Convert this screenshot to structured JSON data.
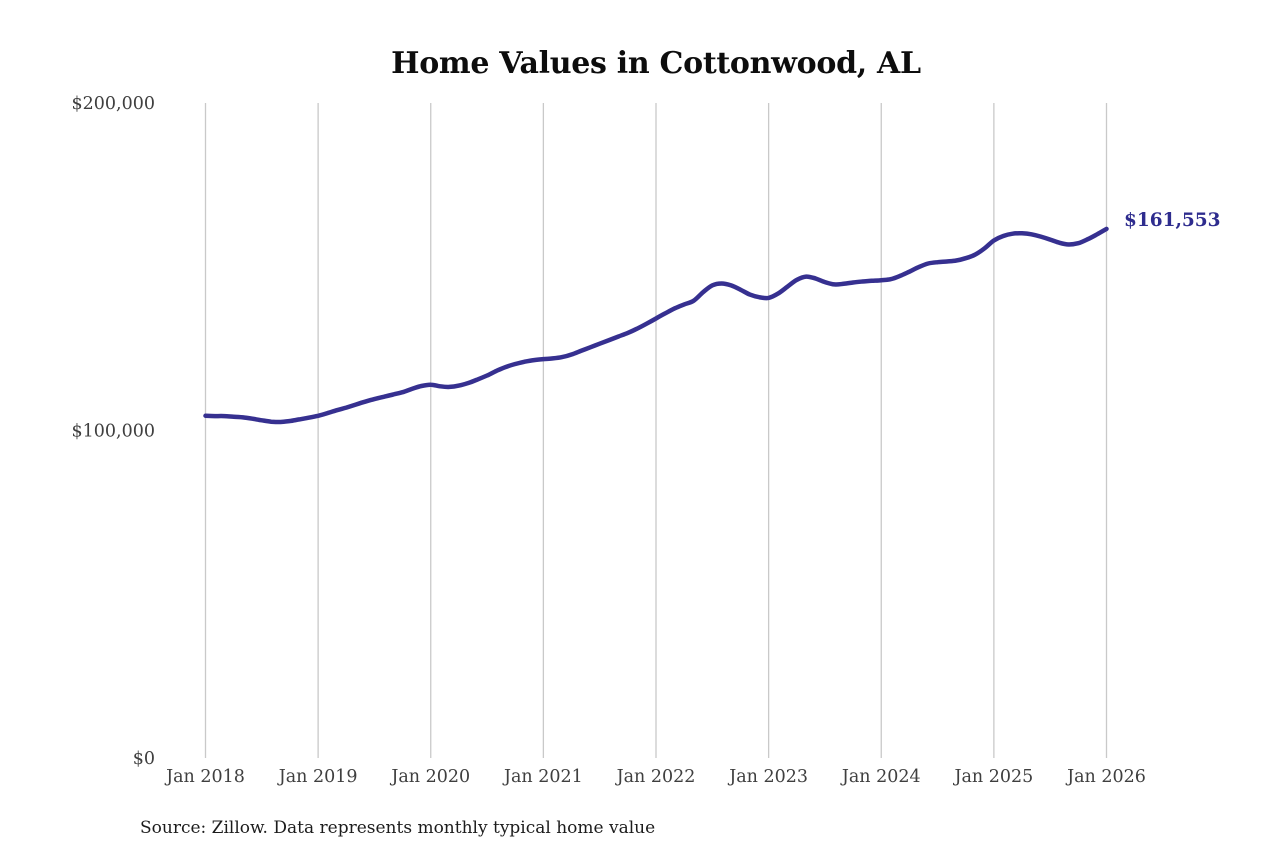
{
  "title": "Home Values in Cottonwood, AL",
  "source_note": "Source: Zillow. Data represents monthly typical home value",
  "end_label": "$161,553",
  "colors": {
    "line": "#363090",
    "end_label": "#2e2c8e",
    "gridline": "#c9c9c9",
    "axis_text": "#3f3f3f",
    "title_text": "#0d0d0d",
    "source_text": "#1c1c1c"
  },
  "chart_data": {
    "type": "line",
    "title": "Home Values in Cottonwood, AL",
    "xlabel": "",
    "ylabel": "",
    "ylim": [
      0,
      200000
    ],
    "y_ticks": [
      0,
      100000,
      200000
    ],
    "y_tick_labels": [
      "$0",
      "$100,000",
      "$200,000"
    ],
    "x_tick_labels": [
      "Jan 2018",
      "Jan 2019",
      "Jan 2020",
      "Jan 2021",
      "Jan 2022",
      "Jan 2023",
      "Jan 2024",
      "Jan 2025",
      "Jan 2026"
    ],
    "grid": "vertical-only",
    "legend": "none",
    "x_start_month": "2018-01",
    "x_end_month": "2026-01",
    "final_value": 161553,
    "series": [
      {
        "name": "Monthly typical home value",
        "monthly_values": [
          104500,
          104400,
          104400,
          104200,
          104000,
          103600,
          103100,
          102700,
          102600,
          102900,
          103400,
          103900,
          104500,
          105300,
          106200,
          107000,
          107900,
          108800,
          109600,
          110300,
          111000,
          111700,
          112700,
          113600,
          114000,
          113500,
          113300,
          113700,
          114500,
          115600,
          116800,
          118200,
          119400,
          120300,
          121000,
          121500,
          121800,
          122000,
          122400,
          123200,
          124300,
          125400,
          126500,
          127600,
          128700,
          129800,
          131100,
          132600,
          134200,
          135800,
          137300,
          138500,
          139600,
          142200,
          144300,
          144900,
          144300,
          143000,
          141500,
          140700,
          140500,
          141800,
          143900,
          146000,
          147000,
          146400,
          145300,
          144600,
          144800,
          145200,
          145500,
          145700,
          145900,
          146200,
          147200,
          148500,
          149900,
          151000,
          151400,
          151600,
          151900,
          152600,
          153700,
          155600,
          158000,
          159400,
          160100,
          160200,
          159900,
          159200,
          158300,
          157300,
          156800,
          157200,
          158400,
          159900,
          161553
        ]
      }
    ]
  }
}
